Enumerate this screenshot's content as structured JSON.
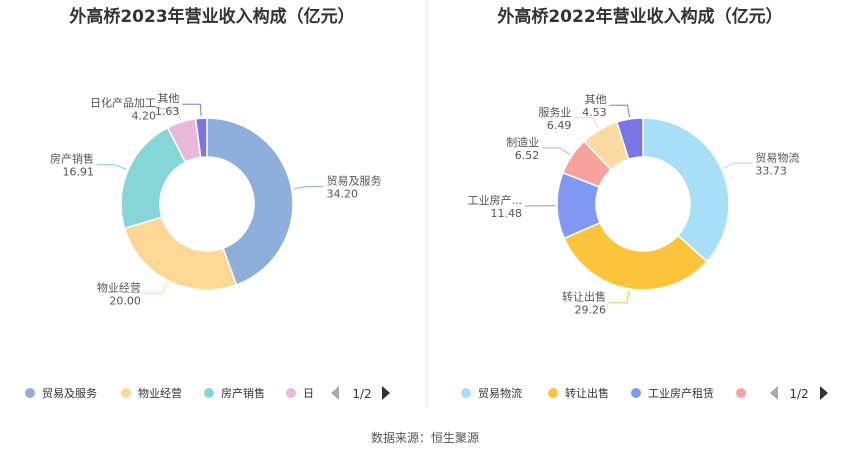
{
  "source": "数据来源：恒生聚源",
  "colors": {
    "left": [
      "#8eaedb",
      "#fdd894",
      "#86d6d8",
      "#e8b9da",
      "#7a76e8"
    ],
    "right": [
      "#a7dff7",
      "#fdc33b",
      "#8298f5",
      "#f7a29b",
      "#fcdba3",
      "#7a76e8"
    ],
    "title": "#333333",
    "label": "#555555",
    "divider": "#e6e6e6"
  },
  "charts": [
    {
      "legend": {
        "items": [
          "贸易及服务",
          "物业经营",
          "房产销售",
          "日"
        ],
        "page": "1/2"
      }
    },
    {
      "legend": {
        "items": [
          "贸易物流",
          "转让出售",
          "工业房产租赁",
          ""
        ],
        "page": "1/2"
      }
    }
  ],
  "chart_data": [
    {
      "type": "pie",
      "title": "外高桥2023年营业收入构成（亿元）",
      "categories": [
        "贸易及服务",
        "物业经营",
        "房产销售",
        "日化产品加工",
        "其他"
      ],
      "values": [
        34.2,
        20.0,
        16.91,
        4.2,
        1.63
      ],
      "value_labels": [
        "34.20",
        "20.00",
        "16.91",
        "4.20",
        "1.63"
      ],
      "donut": true,
      "legend": "bottom"
    },
    {
      "type": "pie",
      "title": "外高桥2022年营业收入构成（亿元）",
      "categories": [
        "贸易物流",
        "转让出售",
        "工业房产租赁",
        "制造业",
        "服务业",
        "其他"
      ],
      "label_text": [
        "贸易物流",
        "转让出售",
        "工业房产...",
        "制造业",
        "服务业",
        "其他"
      ],
      "values": [
        33.73,
        29.26,
        11.48,
        6.52,
        6.49,
        4.53
      ],
      "value_labels": [
        "33.73",
        "29.26",
        "11.48",
        "6.52",
        "6.49",
        "4.53"
      ],
      "donut": true,
      "legend": "bottom"
    }
  ]
}
